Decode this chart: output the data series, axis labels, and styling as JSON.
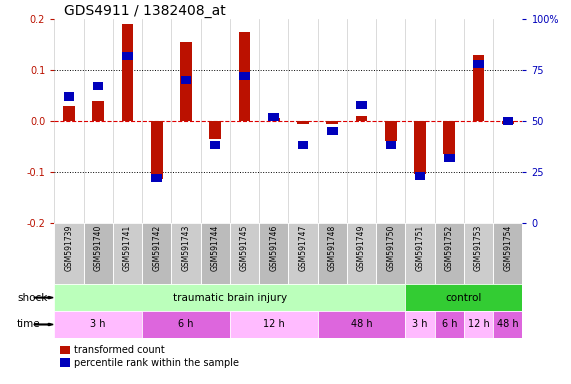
{
  "title": "GDS4911 / 1382408_at",
  "samples": [
    "GSM591739",
    "GSM591740",
    "GSM591741",
    "GSM591742",
    "GSM591743",
    "GSM591744",
    "GSM591745",
    "GSM591746",
    "GSM591747",
    "GSM591748",
    "GSM591749",
    "GSM591750",
    "GSM591751",
    "GSM591752",
    "GSM591753",
    "GSM591754"
  ],
  "red_values": [
    0.03,
    0.04,
    0.19,
    -0.115,
    0.155,
    -0.035,
    0.175,
    0.005,
    -0.005,
    -0.005,
    0.01,
    -0.04,
    -0.105,
    -0.065,
    0.13,
    -0.005
  ],
  "blue_values_pct": [
    62,
    67,
    82,
    22,
    70,
    38,
    72,
    52,
    38,
    45,
    58,
    38,
    23,
    32,
    78,
    50
  ],
  "ylim_left": [
    -0.2,
    0.2
  ],
  "ylim_right": [
    0,
    100
  ],
  "yticks_left": [
    -0.2,
    -0.1,
    0.0,
    0.1,
    0.2
  ],
  "yticks_right": [
    0,
    25,
    50,
    75,
    100
  ],
  "ytick_labels_right": [
    "0",
    "25",
    "50",
    "75",
    "100%"
  ],
  "red_color": "#bb1100",
  "blue_color": "#0000bb",
  "zero_line_color": "#dd0000",
  "shock_groups": [
    {
      "label": "traumatic brain injury",
      "start": 0,
      "end": 12,
      "color": "#bbffbb"
    },
    {
      "label": "control",
      "start": 12,
      "end": 16,
      "color": "#33cc33"
    }
  ],
  "time_groups": [
    {
      "label": "3 h",
      "start": 0,
      "end": 3,
      "color": "#ffbbff"
    },
    {
      "label": "6 h",
      "start": 3,
      "end": 6,
      "color": "#dd66dd"
    },
    {
      "label": "12 h",
      "start": 6,
      "end": 9,
      "color": "#ffbbff"
    },
    {
      "label": "48 h",
      "start": 9,
      "end": 12,
      "color": "#dd66dd"
    },
    {
      "label": "3 h",
      "start": 12,
      "end": 13,
      "color": "#ffbbff"
    },
    {
      "label": "6 h",
      "start": 13,
      "end": 14,
      "color": "#dd66dd"
    },
    {
      "label": "12 h",
      "start": 14,
      "end": 15,
      "color": "#ffbbff"
    },
    {
      "label": "48 h",
      "start": 15,
      "end": 16,
      "color": "#dd66dd"
    }
  ],
  "legend_items": [
    {
      "label": "transformed count",
      "color": "#bb1100"
    },
    {
      "label": "percentile rank within the sample",
      "color": "#0000bb"
    }
  ],
  "red_bar_width": 0.4,
  "blue_square_size": 0.006,
  "background_color": "#ffffff",
  "label_bg_even": "#cccccc",
  "label_bg_odd": "#bbbbbb"
}
